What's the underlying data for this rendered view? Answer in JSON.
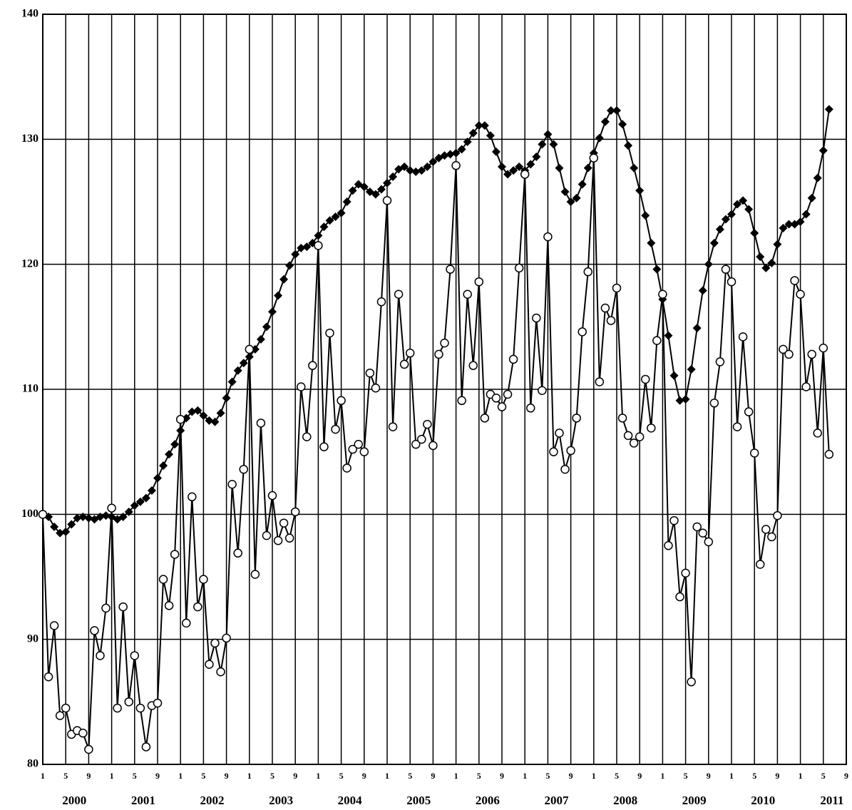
{
  "chart_data": {
    "type": "line",
    "categories": [
      "1",
      null,
      null,
      null,
      "5",
      null,
      null,
      null,
      "9",
      null,
      null,
      null,
      "1",
      null,
      null,
      null,
      "5",
      null,
      null,
      null,
      "9",
      null,
      null,
      null,
      "1",
      null,
      null,
      null,
      "5",
      null,
      null,
      null,
      "9",
      null,
      null,
      null,
      "1",
      null,
      null,
      null,
      "5",
      null,
      null,
      null,
      "9",
      null,
      null,
      null,
      "1",
      null,
      null,
      null,
      "5",
      null,
      null,
      null,
      "9",
      null,
      null,
      null,
      "1",
      null,
      null,
      null,
      "5",
      null,
      null,
      null,
      "9",
      null,
      null,
      null,
      "1",
      null,
      null,
      null,
      "5",
      null,
      null,
      null,
      "9",
      null,
      null,
      null,
      "1",
      null,
      null,
      null,
      "5",
      null,
      null,
      null,
      "9",
      null,
      null,
      null,
      "1",
      null,
      null,
      null,
      "5",
      null,
      null,
      null,
      "9",
      null,
      null,
      null,
      "1",
      null,
      null,
      null,
      "5",
      null,
      null,
      null,
      "9",
      null,
      null,
      null,
      "1",
      null,
      null,
      null,
      "5",
      null,
      null,
      null,
      "9",
      null,
      null,
      null,
      "1",
      null,
      null,
      null,
      "5",
      null,
      null,
      null,
      "9"
    ],
    "year_labels": [
      "2000",
      "2001",
      "2002",
      "2003",
      "2004",
      "2005",
      "2006",
      "2007",
      "2008",
      "2009",
      "2010",
      "2011"
    ],
    "ylim": [
      80,
      140
    ],
    "yticks": [
      80,
      90,
      100,
      110,
      120,
      130,
      140
    ],
    "grid": true,
    "series": [
      {
        "color": "#000000",
        "marker": "diamond",
        "values": [
          100,
          99.8,
          99.0,
          98.5,
          98.6,
          99.2,
          99.7,
          99.8,
          99.7,
          99.6,
          99.8,
          99.9,
          99.8,
          99.6,
          99.8,
          100.2,
          100.7,
          101.0,
          101.3,
          101.9,
          102.9,
          103.9,
          104.8,
          105.6,
          106.7,
          107.7,
          108.2,
          108.3,
          107.9,
          107.5,
          107.4,
          108.1,
          109.3,
          110.6,
          111.5,
          112.1,
          112.6,
          113.2,
          114.0,
          115.0,
          116.2,
          117.5,
          118.8,
          119.9,
          120.8,
          121.3,
          121.4,
          121.7,
          122.3,
          123.0,
          123.5,
          123.8,
          124.1,
          125.0,
          125.9,
          126.4,
          126.2,
          125.8,
          125.6,
          126.0,
          126.5,
          127.0,
          127.6,
          127.8,
          127.5,
          127.4,
          127.5,
          127.8,
          128.2,
          128.5,
          128.7,
          128.8,
          128.9,
          129.2,
          129.8,
          130.5,
          131.1,
          131.1,
          130.3,
          129.0,
          127.8,
          127.2,
          127.5,
          127.8,
          127.5,
          128.0,
          128.6,
          129.6,
          130.4,
          129.6,
          127.7,
          125.8,
          125.0,
          125.3,
          126.4,
          127.7,
          128.9,
          130.1,
          131.4,
          132.3,
          132.3,
          131.2,
          129.5,
          127.7,
          125.9,
          123.9,
          121.7,
          119.6,
          117.2,
          114.3,
          111.1,
          109.1,
          109.2,
          111.6,
          114.9,
          117.9,
          120.0,
          121.7,
          122.8,
          123.6,
          124.0,
          124.8,
          125.1,
          124.4,
          122.5,
          120.6,
          119.7,
          120.1,
          121.6,
          122.9,
          123.2,
          123.2,
          123.4,
          124.0,
          125.3,
          126.9,
          129.1,
          132.4,
          null,
          null,
          null
        ]
      },
      {
        "color": "#000000",
        "marker": "circle",
        "values": [
          100.0,
          87.0,
          91.1,
          83.9,
          84.5,
          82.4,
          82.7,
          82.5,
          81.2,
          90.7,
          88.7,
          92.5,
          100.5,
          84.5,
          92.6,
          85.0,
          88.7,
          84.5,
          81.4,
          84.7,
          84.9,
          94.8,
          92.7,
          96.8,
          107.6,
          91.3,
          101.4,
          92.6,
          94.8,
          88.0,
          89.7,
          87.4,
          90.1,
          102.4,
          96.9,
          103.6,
          113.2,
          95.2,
          107.3,
          98.3,
          101.5,
          97.9,
          99.3,
          98.1,
          100.2,
          110.2,
          106.2,
          111.9,
          121.5,
          105.4,
          114.5,
          106.8,
          109.1,
          103.7,
          105.2,
          105.6,
          105.0,
          111.3,
          110.1,
          117.0,
          125.1,
          107.0,
          117.6,
          112.0,
          112.9,
          105.6,
          106.0,
          107.2,
          105.5,
          112.8,
          113.7,
          119.6,
          127.9,
          109.1,
          117.6,
          111.9,
          118.6,
          107.7,
          109.6,
          109.3,
          108.6,
          109.6,
          112.4,
          119.7,
          127.2,
          108.5,
          115.7,
          109.9,
          122.2,
          105.0,
          106.5,
          103.6,
          105.1,
          107.7,
          114.6,
          119.4,
          128.5,
          110.6,
          116.5,
          115.5,
          118.1,
          107.7,
          106.3,
          105.7,
          106.2,
          110.8,
          106.9,
          113.9,
          117.6,
          97.5,
          99.5,
          93.4,
          95.3,
          86.6,
          99.0,
          98.5,
          97.8,
          108.9,
          112.2,
          119.6,
          118.6,
          107.0,
          114.2,
          108.2,
          104.9,
          96.0,
          98.8,
          98.2,
          99.9,
          113.2,
          112.8,
          118.7,
          117.6,
          110.2,
          112.8,
          106.5,
          113.3,
          104.8,
          null,
          null,
          null
        ]
      }
    ]
  }
}
